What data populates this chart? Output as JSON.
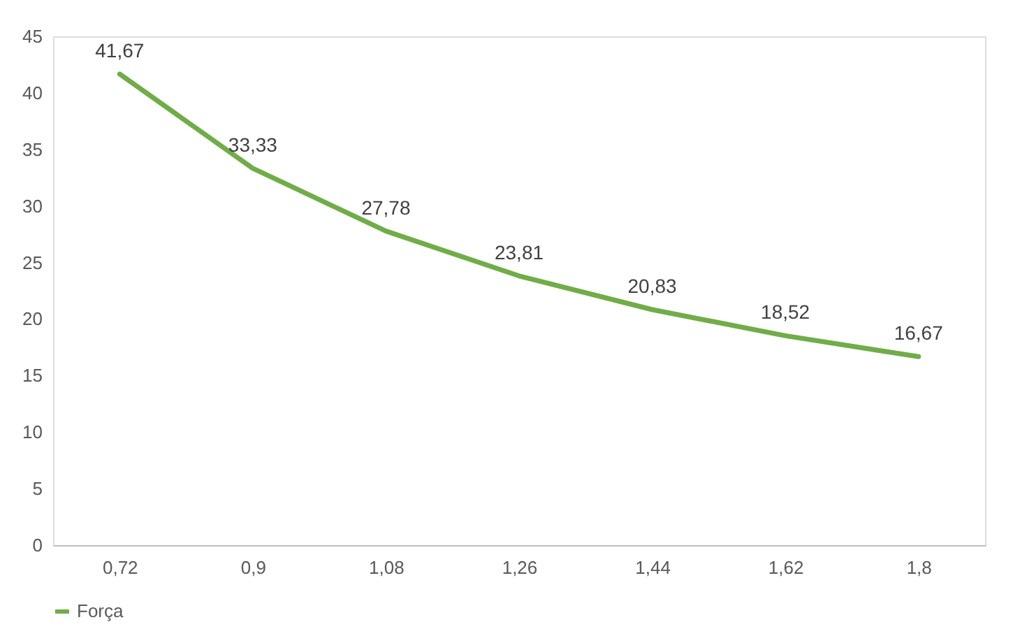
{
  "chart_data": {
    "type": "line",
    "categories": [
      "0,72",
      "0,9",
      "1,08",
      "1,26",
      "1,44",
      "1,62",
      "1,8"
    ],
    "series": [
      {
        "name": "Força",
        "color": "#70ad47",
        "values": [
          41.67,
          33.33,
          27.78,
          23.81,
          20.83,
          18.52,
          16.67
        ],
        "value_labels": [
          "41,67",
          "33,33",
          "27,78",
          "23,81",
          "20,83",
          "18,52",
          "16,67"
        ]
      }
    ],
    "ylim": [
      0,
      45
    ],
    "yticks": [
      0,
      5,
      10,
      15,
      20,
      25,
      30,
      35,
      40,
      45
    ],
    "legend": "bottom",
    "marker": "none",
    "line_style": "solid"
  }
}
